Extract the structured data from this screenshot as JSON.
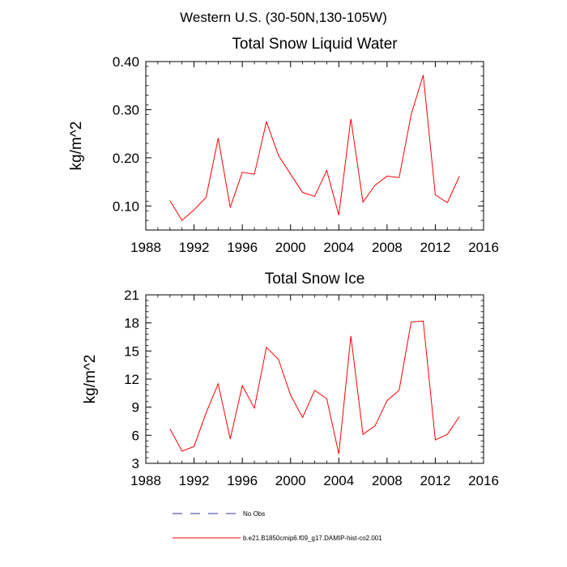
{
  "figure": {
    "title": "Western U.S. (30-50N,130-105W)"
  },
  "legend": {
    "placement": "bottom-center",
    "entries": [
      {
        "label": "No Obs",
        "color": "#3333aa",
        "style": "dashed"
      },
      {
        "label": "b.e21.B1850cmip6.f09_g17.DAMIP-hist-co2.001",
        "color": "#ff0000",
        "style": "solid"
      }
    ]
  },
  "chart_data": [
    {
      "type": "line",
      "title": "Total Snow Liquid Water",
      "xlabel": "",
      "ylabel": "kg/m^2",
      "xlim": [
        1988,
        2016
      ],
      "ylim": [
        0.05,
        0.4
      ],
      "xticks": [
        1988,
        1992,
        1996,
        2000,
        2004,
        2008,
        2012,
        2016
      ],
      "xtick_labels": [
        "1988",
        "1992",
        "1996",
        "2000",
        "2004",
        "2008",
        "2012",
        "2016"
      ],
      "yticks": [
        0.1,
        0.2,
        0.3,
        0.4
      ],
      "ytick_labels": [
        "0.10",
        "0.20",
        "0.30",
        "0.40"
      ],
      "grid": false,
      "series": [
        {
          "name": "b.e21.B1850cmip6.f09_g17.DAMIP-hist-co2.001",
          "color": "#ff0000",
          "x": [
            1990,
            1991,
            1992,
            1993,
            1994,
            1995,
            1996,
            1997,
            1998,
            1999,
            2000,
            2001,
            2002,
            2003,
            2004,
            2005,
            2006,
            2007,
            2008,
            2009,
            2010,
            2011,
            2012,
            2013,
            2014
          ],
          "y": [
            0.111,
            0.07,
            0.092,
            0.118,
            0.241,
            0.097,
            0.17,
            0.166,
            0.275,
            0.205,
            0.166,
            0.128,
            0.12,
            0.174,
            0.081,
            0.281,
            0.108,
            0.143,
            0.162,
            0.159,
            0.29,
            0.372,
            0.123,
            0.107,
            0.162
          ]
        }
      ]
    },
    {
      "type": "line",
      "title": "Total Snow Ice",
      "xlabel": "",
      "ylabel": "kg/m^2",
      "xlim": [
        1988,
        2016
      ],
      "ylim": [
        3,
        21
      ],
      "xticks": [
        1988,
        1992,
        1996,
        2000,
        2004,
        2008,
        2012,
        2016
      ],
      "xtick_labels": [
        "1988",
        "1992",
        "1996",
        "2000",
        "2004",
        "2008",
        "2012",
        "2016"
      ],
      "yticks": [
        3,
        6,
        9,
        12,
        15,
        18,
        21
      ],
      "ytick_labels": [
        "3",
        "6",
        "9",
        "12",
        "15",
        "18",
        "21"
      ],
      "grid": false,
      "series": [
        {
          "name": "b.e21.B1850cmip6.f09_g17.DAMIP-hist-co2.001",
          "color": "#ff0000",
          "x": [
            1990,
            1991,
            1992,
            1993,
            1994,
            1995,
            1996,
            1997,
            1998,
            1999,
            2000,
            2001,
            2002,
            2003,
            2004,
            2005,
            2006,
            2007,
            2008,
            2009,
            2010,
            2011,
            2012,
            2013,
            2014
          ],
          "y": [
            6.7,
            4.3,
            4.8,
            8.4,
            11.5,
            5.6,
            11.3,
            8.9,
            15.4,
            14.1,
            10.3,
            7.9,
            10.8,
            9.9,
            4.0,
            16.6,
            6.1,
            7.0,
            9.7,
            10.8,
            18.1,
            18.2,
            5.5,
            6.1,
            8.0
          ]
        }
      ]
    }
  ]
}
